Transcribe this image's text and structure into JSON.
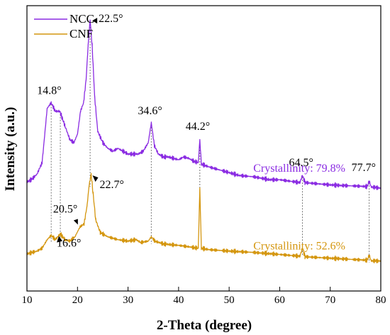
{
  "chart_data": {
    "type": "line",
    "xlabel": "2-Theta (degree)",
    "ylabel": "Intensity (a.u.)",
    "xlim": [
      10,
      80
    ],
    "ylim": [
      0,
      1
    ],
    "x_ticks": [
      "10",
      "20",
      "30",
      "40",
      "50",
      "60",
      "70",
      "80"
    ],
    "y_ticks_labeled": false,
    "grid": false,
    "legend_position": "top-left",
    "series": [
      {
        "name": "NCC",
        "color": "#8a2be2",
        "points": [
          [
            10,
            0.382
          ],
          [
            11,
            0.392
          ],
          [
            12,
            0.41
          ],
          [
            13,
            0.45
          ],
          [
            14,
            0.64
          ],
          [
            14.8,
            0.66
          ],
          [
            15.6,
            0.63
          ],
          [
            16.5,
            0.63
          ],
          [
            17.5,
            0.58
          ],
          [
            18.5,
            0.53
          ],
          [
            19.3,
            0.52
          ],
          [
            20,
            0.55
          ],
          [
            20.6,
            0.63
          ],
          [
            21.2,
            0.66
          ],
          [
            21.7,
            0.74
          ],
          [
            22.1,
            0.86
          ],
          [
            22.5,
            0.95
          ],
          [
            22.9,
            0.86
          ],
          [
            23.4,
            0.68
          ],
          [
            24,
            0.56
          ],
          [
            25,
            0.52
          ],
          [
            26,
            0.5
          ],
          [
            27,
            0.49
          ],
          [
            28,
            0.5
          ],
          [
            29,
            0.49
          ],
          [
            30,
            0.48
          ],
          [
            31,
            0.48
          ],
          [
            32,
            0.48
          ],
          [
            33,
            0.49
          ],
          [
            34,
            0.52
          ],
          [
            34.6,
            0.59
          ],
          [
            35.2,
            0.51
          ],
          [
            36,
            0.48
          ],
          [
            37,
            0.47
          ],
          [
            38,
            0.47
          ],
          [
            40,
            0.46
          ],
          [
            41,
            0.47
          ],
          [
            42,
            0.465
          ],
          [
            43,
            0.455
          ],
          [
            43.9,
            0.45
          ],
          [
            44.2,
            0.53
          ],
          [
            44.5,
            0.445
          ],
          [
            46,
            0.435
          ],
          [
            48,
            0.425
          ],
          [
            50,
            0.415
          ],
          [
            52,
            0.405
          ],
          [
            55,
            0.4
          ],
          [
            58,
            0.39
          ],
          [
            60,
            0.39
          ],
          [
            62,
            0.385
          ],
          [
            64,
            0.38
          ],
          [
            64.5,
            0.405
          ],
          [
            65,
            0.38
          ],
          [
            68,
            0.375
          ],
          [
            70,
            0.372
          ],
          [
            72,
            0.37
          ],
          [
            75,
            0.368
          ],
          [
            77.3,
            0.366
          ],
          [
            77.7,
            0.385
          ],
          [
            78.1,
            0.365
          ],
          [
            80,
            0.36
          ]
        ]
      },
      {
        "name": "CNF",
        "color": "#d4960f",
        "points": [
          [
            10,
            0.13
          ],
          [
            11,
            0.135
          ],
          [
            12,
            0.14
          ],
          [
            13,
            0.15
          ],
          [
            14,
            0.18
          ],
          [
            14.8,
            0.195
          ],
          [
            15.6,
            0.18
          ],
          [
            16.6,
            0.2
          ],
          [
            17.5,
            0.18
          ],
          [
            18.5,
            0.175
          ],
          [
            19.5,
            0.19
          ],
          [
            20.5,
            0.225
          ],
          [
            21.3,
            0.235
          ],
          [
            21.9,
            0.3
          ],
          [
            22.3,
            0.37
          ],
          [
            22.7,
            0.41
          ],
          [
            23.1,
            0.34
          ],
          [
            23.6,
            0.25
          ],
          [
            24.5,
            0.205
          ],
          [
            26,
            0.19
          ],
          [
            28,
            0.18
          ],
          [
            30,
            0.175
          ],
          [
            31.6,
            0.18
          ],
          [
            32.5,
            0.17
          ],
          [
            34,
            0.175
          ],
          [
            34.6,
            0.19
          ],
          [
            35.3,
            0.175
          ],
          [
            37,
            0.165
          ],
          [
            40,
            0.16
          ],
          [
            42,
            0.155
          ],
          [
            43.9,
            0.15
          ],
          [
            44.2,
            0.36
          ],
          [
            44.5,
            0.15
          ],
          [
            46,
            0.145
          ],
          [
            50,
            0.14
          ],
          [
            55,
            0.135
          ],
          [
            60,
            0.128
          ],
          [
            64,
            0.122
          ],
          [
            64.5,
            0.15
          ],
          [
            65,
            0.12
          ],
          [
            70,
            0.115
          ],
          [
            75,
            0.11
          ],
          [
            77.3,
            0.108
          ],
          [
            77.7,
            0.125
          ],
          [
            78.1,
            0.106
          ],
          [
            80,
            0.105
          ]
        ]
      }
    ],
    "peak_guides": [
      14.8,
      16.6,
      22.5,
      34.6,
      44.2,
      64.5,
      77.7
    ],
    "annotations": [
      {
        "text": "14.8°",
        "x": 14.8
      },
      {
        "text": "22.5°",
        "x": 22.5
      },
      {
        "text": "34.6°",
        "x": 34.6
      },
      {
        "text": "44.2°",
        "x": 44.2
      },
      {
        "text": "64.5°",
        "x": 64.5
      },
      {
        "text": "77.7°",
        "x": 77.7
      },
      {
        "text": "20.5°",
        "x": 20.5
      },
      {
        "text": "16.6°",
        "x": 16.6
      },
      {
        "text": "22.7°",
        "x": 22.7
      }
    ],
    "crystallinity": [
      {
        "series": "NCC",
        "text": "Crystallinity: 79.8%"
      },
      {
        "series": "CNF",
        "text": "Crystallinity: 52.6%"
      }
    ]
  }
}
